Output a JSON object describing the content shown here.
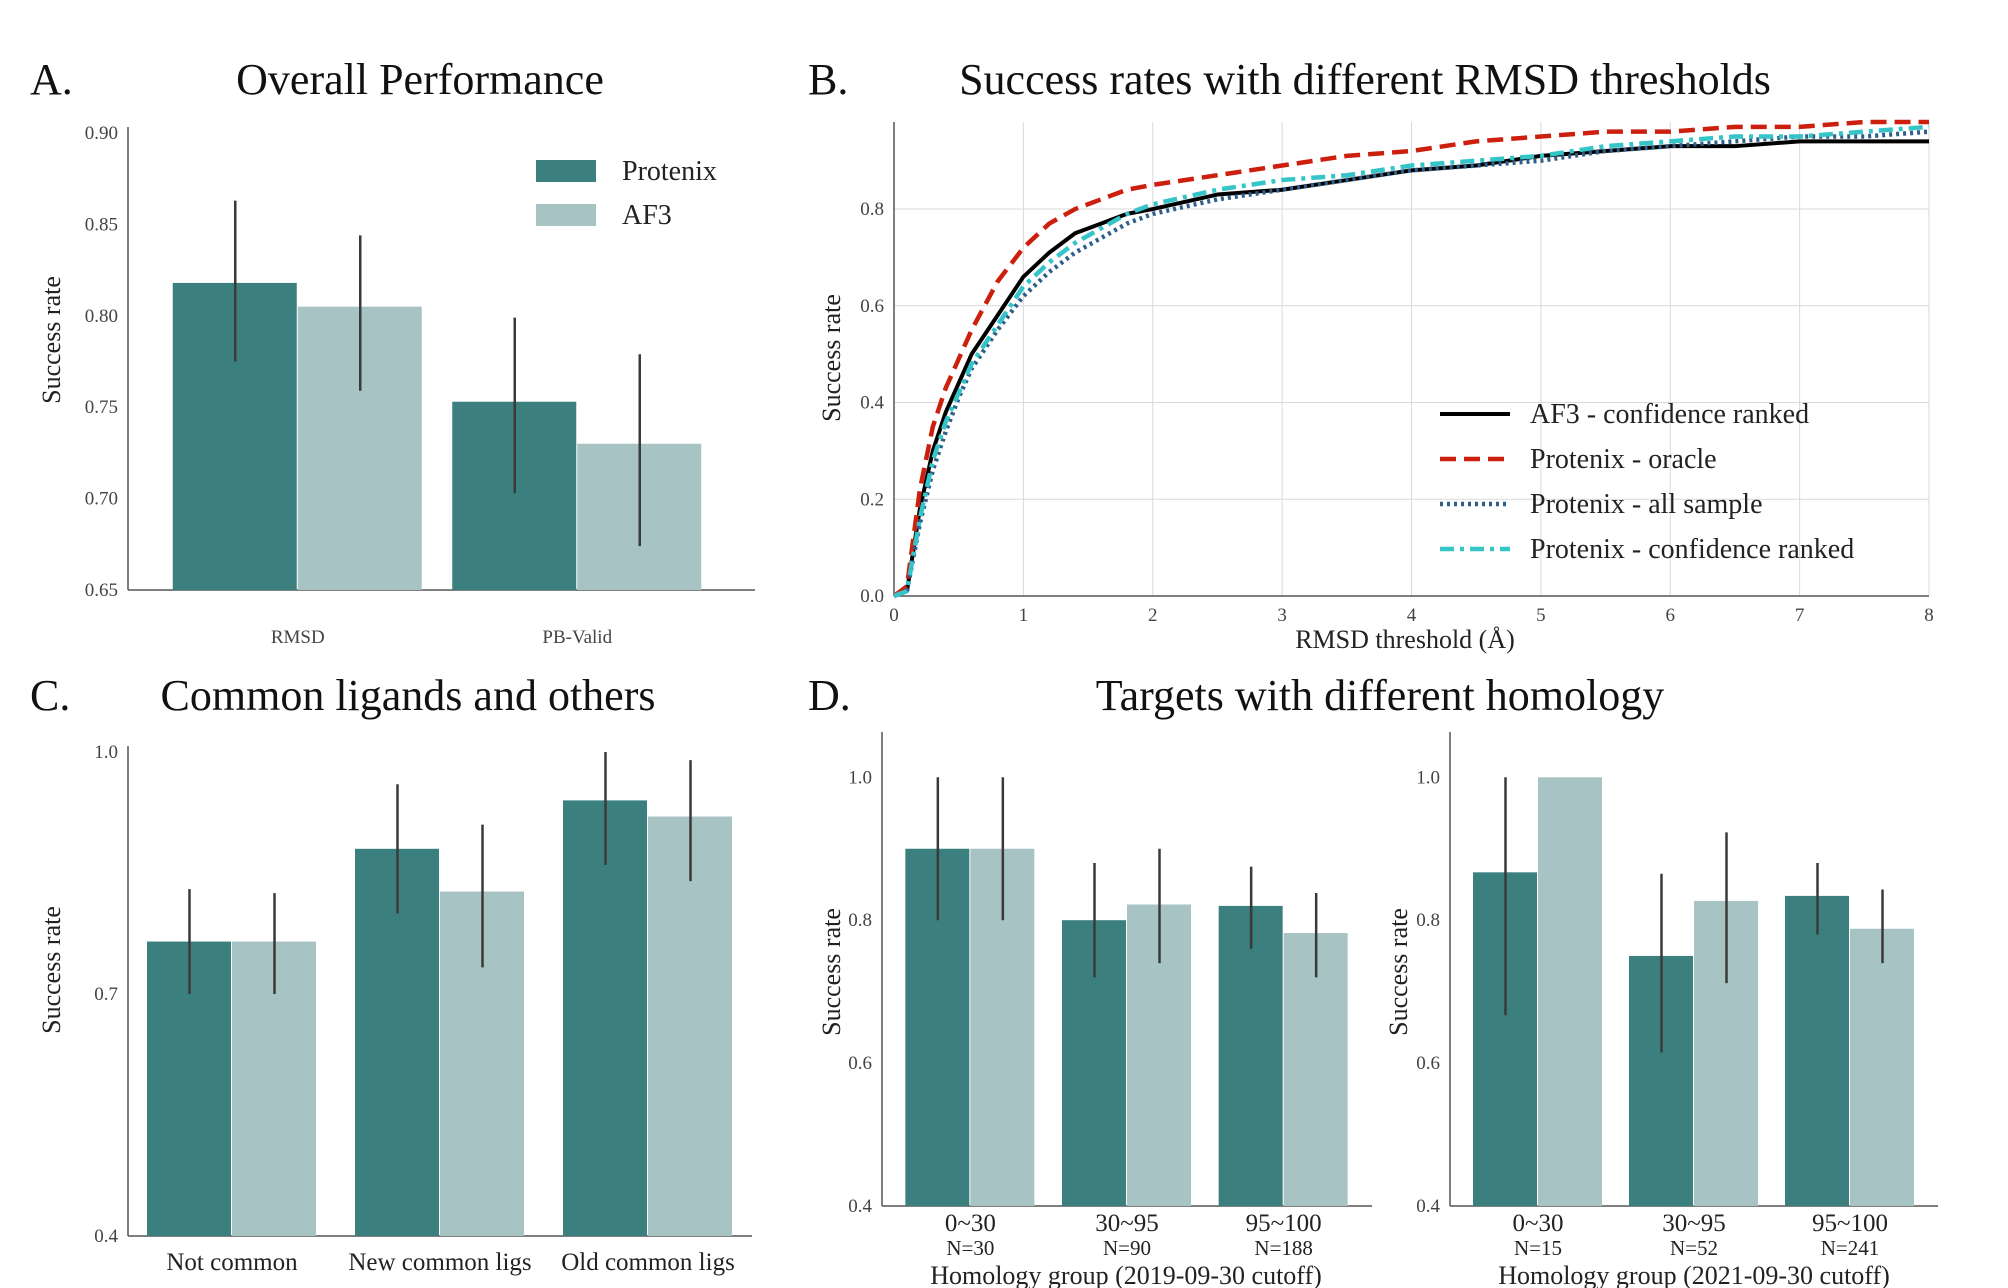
{
  "colors": {
    "protenix": "#3b7f7e",
    "af3": "#a7c3c3",
    "errbar": "#3a3a3a",
    "af3_line": "#000000",
    "oracle": "#cc1f0e",
    "all_sample": "#2e5f8a",
    "conf_ranked": "#35c4c8"
  },
  "chart_data": [
    {
      "id": "A",
      "type": "bar",
      "letter": "A.",
      "title": "Overall Performance",
      "xlabel": "",
      "ylabel": "Success rate",
      "ylim": [
        0.65,
        0.9
      ],
      "yticks": [
        "0.65",
        "0.70",
        "0.75",
        "0.80",
        "0.85",
        "0.90"
      ],
      "categories": [
        "RMSD",
        "PB-Valid"
      ],
      "series": [
        {
          "name": "Protenix",
          "values": [
            0.818,
            0.753
          ],
          "err_low": [
            0.775,
            0.703
          ],
          "err_high": [
            0.863,
            0.799
          ]
        },
        {
          "name": "AF3",
          "values": [
            0.805,
            0.73
          ],
          "err_low": [
            0.759,
            0.674
          ],
          "err_high": [
            0.844,
            0.779
          ]
        }
      ],
      "legend": "top-right",
      "grid": false
    },
    {
      "id": "B",
      "type": "line",
      "letter": "B.",
      "title": "Success rates with different RMSD thresholds",
      "xlabel": "RMSD threshold (Å)",
      "ylabel": "Success rate",
      "xlim": [
        0,
        8
      ],
      "ylim": [
        0,
        0.98
      ],
      "xticks": [
        "0",
        "1",
        "2",
        "3",
        "4",
        "5",
        "6",
        "7",
        "8"
      ],
      "yticks": [
        "0.0",
        "0.2",
        "0.4",
        "0.6",
        "0.8"
      ],
      "grid": true,
      "legend": "bottom-right",
      "x": [
        0,
        0.1,
        0.2,
        0.3,
        0.4,
        0.5,
        0.6,
        0.8,
        1.0,
        1.2,
        1.4,
        1.6,
        1.8,
        2.0,
        2.5,
        3.0,
        3.5,
        4.0,
        4.5,
        5.0,
        5.5,
        6.0,
        6.5,
        7.0,
        7.5,
        8.0
      ],
      "series": [
        {
          "name": "AF3 - confidence ranked",
          "style": "solid",
          "values": [
            0.0,
            0.01,
            0.18,
            0.3,
            0.38,
            0.44,
            0.5,
            0.58,
            0.66,
            0.71,
            0.75,
            0.77,
            0.79,
            0.8,
            0.83,
            0.84,
            0.86,
            0.88,
            0.89,
            0.91,
            0.92,
            0.93,
            0.93,
            0.94,
            0.94,
            0.94
          ]
        },
        {
          "name": "Protenix - oracle",
          "style": "dashed",
          "values": [
            0.0,
            0.02,
            0.22,
            0.35,
            0.43,
            0.49,
            0.55,
            0.65,
            0.72,
            0.77,
            0.8,
            0.82,
            0.84,
            0.85,
            0.87,
            0.89,
            0.91,
            0.92,
            0.94,
            0.95,
            0.96,
            0.96,
            0.97,
            0.97,
            0.98,
            0.98
          ]
        },
        {
          "name": "Protenix - all sample",
          "style": "dotted",
          "values": [
            0.0,
            0.01,
            0.15,
            0.26,
            0.34,
            0.41,
            0.47,
            0.55,
            0.62,
            0.67,
            0.71,
            0.74,
            0.77,
            0.79,
            0.82,
            0.84,
            0.86,
            0.88,
            0.89,
            0.9,
            0.92,
            0.93,
            0.94,
            0.95,
            0.95,
            0.96
          ]
        },
        {
          "name": "Protenix - confidence ranked",
          "style": "dashdot",
          "values": [
            0.0,
            0.01,
            0.16,
            0.28,
            0.36,
            0.42,
            0.48,
            0.56,
            0.64,
            0.69,
            0.73,
            0.76,
            0.79,
            0.81,
            0.84,
            0.86,
            0.87,
            0.89,
            0.9,
            0.91,
            0.93,
            0.94,
            0.95,
            0.95,
            0.96,
            0.97
          ]
        }
      ]
    },
    {
      "id": "C",
      "type": "bar",
      "letter": "C.",
      "title": "Common ligands and others",
      "xlabel": "",
      "ylabel": "Success rate",
      "ylim": [
        0.4,
        1.0
      ],
      "yticks": [
        "0.4",
        "0.7",
        "1.0"
      ],
      "categories": [
        "Not common",
        "New common ligs",
        "Old common ligs"
      ],
      "series": [
        {
          "name": "Protenix",
          "values": [
            0.765,
            0.88,
            0.94
          ],
          "err_low": [
            0.7,
            0.8,
            0.86
          ],
          "err_high": [
            0.83,
            0.96,
            1.0
          ]
        },
        {
          "name": "AF3",
          "values": [
            0.765,
            0.827,
            0.92
          ],
          "err_low": [
            0.7,
            0.733,
            0.84
          ],
          "err_high": [
            0.825,
            0.91,
            0.99
          ]
        }
      ],
      "grid": false
    },
    {
      "id": "D1",
      "type": "bar",
      "letter": "D.",
      "title": "Targets with different homology",
      "xlabel": "Homology group (2019-09-30 cutoff)",
      "ylabel": "Success rate",
      "ylim": [
        0.4,
        1.055
      ],
      "yticks": [
        "0.4",
        "0.6",
        "0.8",
        "1.0"
      ],
      "categories": [
        "0~30",
        "30~95",
        "95~100"
      ],
      "counts": [
        "N=30",
        "N=90",
        "N=188"
      ],
      "series": [
        {
          "name": "Protenix",
          "values": [
            0.9,
            0.8,
            0.82
          ],
          "err_low": [
            0.8,
            0.72,
            0.76
          ],
          "err_high": [
            1.0,
            0.88,
            0.875
          ]
        },
        {
          "name": "AF3",
          "values": [
            0.9,
            0.822,
            0.782
          ],
          "err_low": [
            0.8,
            0.74,
            0.72
          ],
          "err_high": [
            1.0,
            0.9,
            0.838
          ]
        }
      ],
      "grid": false
    },
    {
      "id": "D2",
      "type": "bar",
      "xlabel": "Homology group (2021-09-30 cutoff)",
      "ylabel": "Success rate",
      "ylim": [
        0.4,
        1.055
      ],
      "yticks": [
        "0.4",
        "0.6",
        "0.8",
        "1.0"
      ],
      "categories": [
        "0~30",
        "30~95",
        "95~100"
      ],
      "counts": [
        "N=15",
        "N=52",
        "N=241"
      ],
      "series": [
        {
          "name": "Protenix",
          "values": [
            0.867,
            0.75,
            0.834
          ],
          "err_low": [
            0.667,
            0.615,
            0.78
          ],
          "err_high": [
            1.0,
            0.865,
            0.88
          ]
        },
        {
          "name": "AF3",
          "values": [
            1.0,
            0.827,
            0.788
          ],
          "err_low": [
            1.0,
            0.712,
            0.74
          ],
          "err_high": [
            1.0,
            0.923,
            0.843
          ]
        }
      ],
      "grid": false
    }
  ]
}
